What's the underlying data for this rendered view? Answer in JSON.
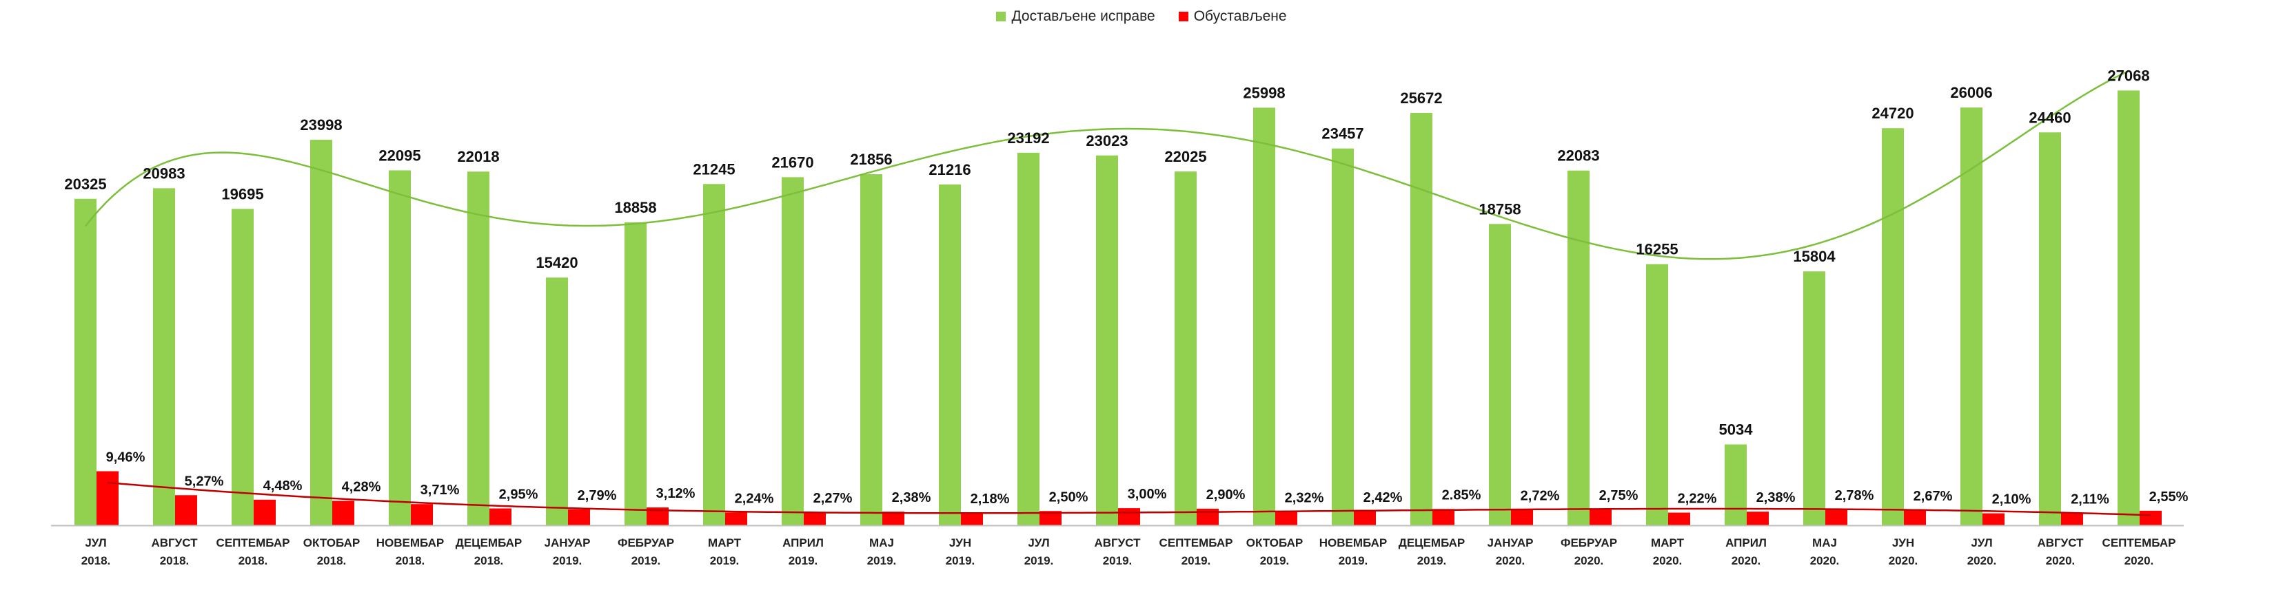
{
  "chart_data": {
    "type": "bar",
    "legend_placement": "top",
    "grid": false,
    "colors": {
      "primary": "#92d050",
      "secondary": "#ff0000",
      "primary_trend": "#7cbf3a",
      "secondary_trend": "#c00000",
      "axis": "#bfbfbf"
    },
    "categories": [
      {
        "month": "ЈУЛ",
        "year": "2018."
      },
      {
        "month": "АВГУСТ",
        "year": "2018."
      },
      {
        "month": "СЕПТЕМБАР",
        "year": "2018."
      },
      {
        "month": "ОКТОБАР",
        "year": "2018."
      },
      {
        "month": "НОВЕМБАР",
        "year": "2018."
      },
      {
        "month": "ДЕЦЕМБАР",
        "year": "2018."
      },
      {
        "month": "ЈАНУАР",
        "year": "2019."
      },
      {
        "month": "ФЕБРУАР",
        "year": "2019."
      },
      {
        "month": "МАРТ",
        "year": "2019."
      },
      {
        "month": "АПРИЛ",
        "year": "2019."
      },
      {
        "month": "МАЈ",
        "year": "2019."
      },
      {
        "month": "ЈУН",
        "year": "2019."
      },
      {
        "month": "ЈУЛ",
        "year": "2019."
      },
      {
        "month": "АВГУСТ",
        "year": "2019."
      },
      {
        "month": "СЕПТЕМБАР",
        "year": "2019."
      },
      {
        "month": "ОКТОБАР",
        "year": "2019."
      },
      {
        "month": "НОВЕМБАР",
        "year": "2019."
      },
      {
        "month": "ДЕЦЕМБАР",
        "year": "2019."
      },
      {
        "month": "ЈАНУАР",
        "year": "2020."
      },
      {
        "month": "ФЕБРУАР",
        "year": "2020."
      },
      {
        "month": "МАРТ",
        "year": "2020."
      },
      {
        "month": "АПРИЛ",
        "year": "2020."
      },
      {
        "month": "МАЈ",
        "year": "2020."
      },
      {
        "month": "ЈУН",
        "year": "2020."
      },
      {
        "month": "ЈУЛ",
        "year": "2020."
      },
      {
        "month": "АВГУСТ",
        "year": "2020."
      },
      {
        "month": "СЕПТЕМБАР",
        "year": "2020."
      }
    ],
    "ylim": [
      0,
      30000
    ],
    "series": [
      {
        "name": "Достављене исправе",
        "values": [
          20325,
          20983,
          19695,
          23998,
          22095,
          22018,
          15420,
          18858,
          21245,
          21670,
          21856,
          21216,
          23192,
          23023,
          22025,
          25998,
          23457,
          25672,
          18758,
          22083,
          16255,
          5034,
          15804,
          24720,
          26006,
          24460,
          27068
        ],
        "labels": [
          "20325",
          "20983",
          "19695",
          "23998",
          "22095",
          "22018",
          "15420",
          "18858",
          "21245",
          "21670",
          "21856",
          "21216",
          "23192",
          "23023",
          "22025",
          "25998",
          "23457",
          "25672",
          "18758",
          "22083",
          "16255",
          "5034",
          "15804",
          "24720",
          "26006",
          "24460",
          "27068"
        ]
      },
      {
        "name": "Обустављене",
        "values": [
          9.46,
          5.27,
          4.48,
          4.28,
          3.71,
          2.95,
          2.79,
          3.12,
          2.24,
          2.27,
          2.38,
          2.18,
          2.5,
          3.0,
          2.9,
          2.32,
          2.42,
          2.85,
          2.72,
          2.75,
          2.22,
          2.38,
          2.78,
          2.67,
          2.1,
          2.11,
          2.55
        ],
        "unit": "%",
        "labels": [
          "9,46%",
          "5,27%",
          "4,48%",
          "4,28%",
          "3,71%",
          "2,95%",
          "2,79%",
          "3,12%",
          "2,24%",
          "2,27%",
          "2,38%",
          "2,18%",
          "2,50%",
          "3,00%",
          "2,90%",
          "2,32%",
          "2,42%",
          "2.85%",
          "2,72%",
          "2,75%",
          "2,22%",
          "2,38%",
          "2,78%",
          "2,67%",
          "2,10%",
          "2,11%",
          "2,55%"
        ]
      }
    ]
  }
}
